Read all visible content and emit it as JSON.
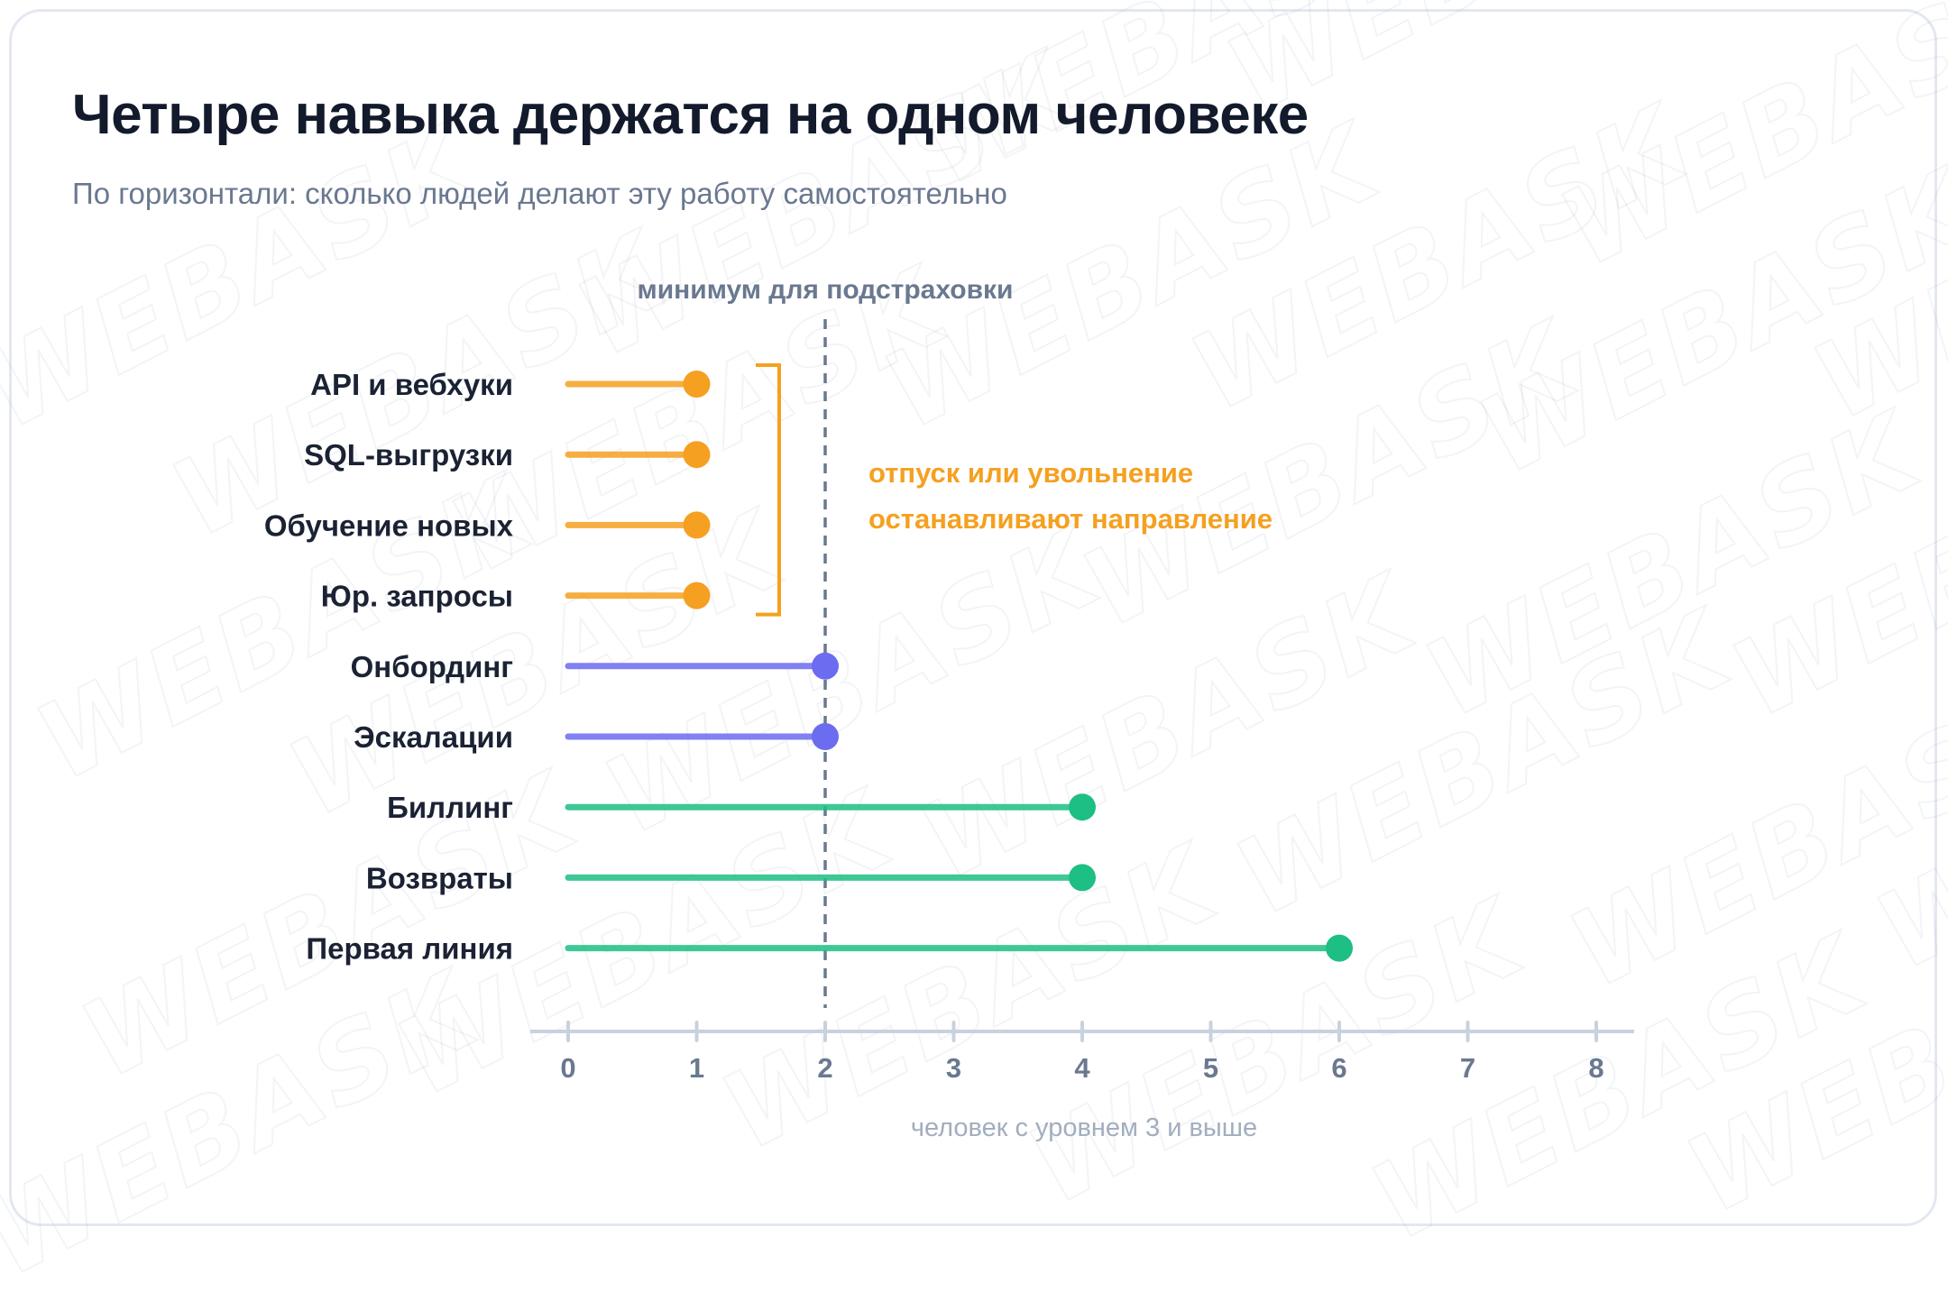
{
  "header": {
    "title": "Четыре навыка держатся на одном человеке",
    "subtitle": "По горизонтали: сколько людей делают эту работу самостоятельно"
  },
  "watermark": {
    "text": "WEBASK"
  },
  "colors": {
    "risk": "#f5a020",
    "borderline": "#6c6cf0",
    "safe": "#1dbf84",
    "axis": "#c9d1de",
    "reference_line": "#6a7890",
    "title": "#121a2c",
    "muted": "#6a7890"
  },
  "annotation": {
    "lines": [
      "отпуск или увольнение",
      "останавливают направление"
    ]
  },
  "chart_data": {
    "type": "lollipop",
    "title": "Четыре навыка держатся на одном человеке",
    "subtitle": "По горизонтали: сколько людей делают эту работу самостоятельно",
    "xlabel": "человек с уровнем 3 и выше",
    "ylabel": "",
    "xlim": [
      0,
      8
    ],
    "xticks": [
      0,
      1,
      2,
      3,
      4,
      5,
      6,
      7,
      8
    ],
    "grid": false,
    "reference_line": {
      "value": 2,
      "label": "минимум для подстраховки",
      "style": "dashed"
    },
    "categories": [
      "API и вебхуки",
      "SQL-выгрузки",
      "Обучение новых",
      "Юр. запросы",
      "Онбординг",
      "Эскалации",
      "Биллинг",
      "Возвраты",
      "Первая линия"
    ],
    "values": [
      1,
      1,
      1,
      1,
      2,
      2,
      4,
      4,
      6
    ],
    "groups": [
      "risk",
      "risk",
      "risk",
      "risk",
      "borderline",
      "borderline",
      "safe",
      "safe",
      "safe"
    ]
  }
}
